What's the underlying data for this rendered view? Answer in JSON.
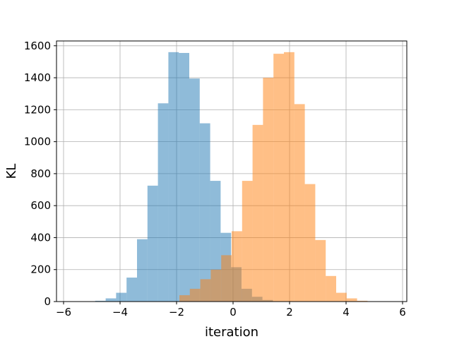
{
  "chart_data": {
    "type": "bar",
    "title": "",
    "xlabel": "iteration",
    "ylabel": "KL",
    "xlim": [
      -6.25,
      6.15
    ],
    "ylim": [
      0,
      1630
    ],
    "xticks": [
      -6,
      -4,
      -2,
      0,
      2,
      4,
      6
    ],
    "yticks": [
      0,
      200,
      400,
      600,
      800,
      1000,
      1200,
      1400,
      1600
    ],
    "grid": true,
    "legend": "none",
    "bin_width": 0.37,
    "series": [
      {
        "color": "#1f77b4",
        "opacity": 0.5,
        "bins": [
          {
            "x0": -4.88,
            "count": 5
          },
          {
            "x0": -4.51,
            "count": 20
          },
          {
            "x0": -4.14,
            "count": 55
          },
          {
            "x0": -3.77,
            "count": 150
          },
          {
            "x0": -3.4,
            "count": 390
          },
          {
            "x0": -3.03,
            "count": 725
          },
          {
            "x0": -2.66,
            "count": 1240
          },
          {
            "x0": -2.29,
            "count": 1560
          },
          {
            "x0": -1.92,
            "count": 1555
          },
          {
            "x0": -1.55,
            "count": 1395
          },
          {
            "x0": -1.18,
            "count": 1115
          },
          {
            "x0": -0.81,
            "count": 755
          },
          {
            "x0": -0.44,
            "count": 430
          },
          {
            "x0": -0.07,
            "count": 215
          },
          {
            "x0": 0.3,
            "count": 80
          },
          {
            "x0": 0.67,
            "count": 30
          },
          {
            "x0": 1.04,
            "count": 10
          }
        ]
      },
      {
        "color": "#ff7f0e",
        "opacity": 0.5,
        "bins": [
          {
            "x0": -1.9,
            "count": 40
          },
          {
            "x0": -1.53,
            "count": 80
          },
          {
            "x0": -1.16,
            "count": 140
          },
          {
            "x0": -0.79,
            "count": 200
          },
          {
            "x0": -0.42,
            "count": 290
          },
          {
            "x0": -0.05,
            "count": 440
          },
          {
            "x0": 0.32,
            "count": 755
          },
          {
            "x0": 0.69,
            "count": 1105
          },
          {
            "x0": 1.06,
            "count": 1400
          },
          {
            "x0": 1.43,
            "count": 1550
          },
          {
            "x0": 1.8,
            "count": 1560
          },
          {
            "x0": 2.17,
            "count": 1235
          },
          {
            "x0": 2.54,
            "count": 735
          },
          {
            "x0": 2.91,
            "count": 385
          },
          {
            "x0": 3.28,
            "count": 160
          },
          {
            "x0": 3.65,
            "count": 55
          },
          {
            "x0": 4.02,
            "count": 20
          },
          {
            "x0": 4.39,
            "count": 5
          }
        ]
      }
    ]
  }
}
